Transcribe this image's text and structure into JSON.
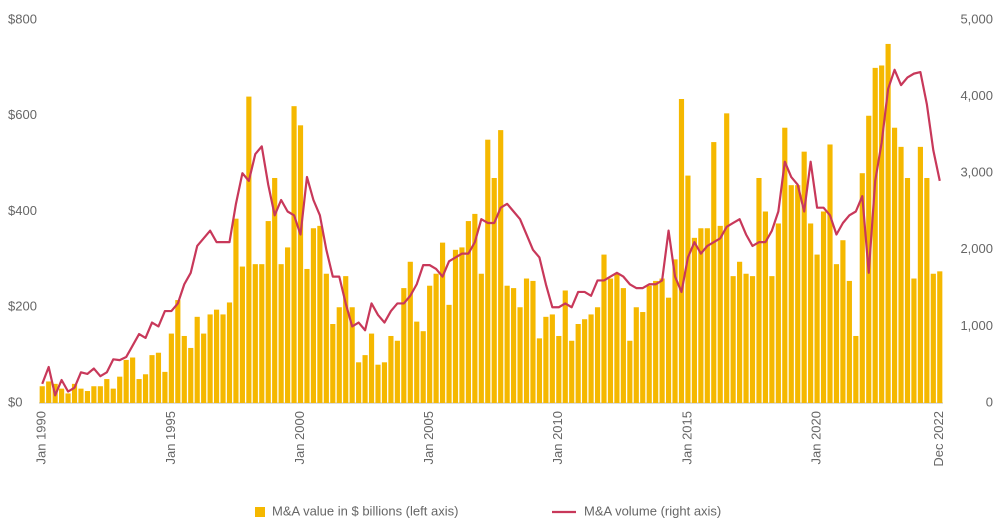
{
  "chart_data": {
    "type": "bar",
    "categories": [
      "Jan 1990",
      null,
      null,
      null,
      null,
      null,
      null,
      null,
      null,
      null,
      null,
      null,
      null,
      null,
      null,
      null,
      null,
      null,
      null,
      null,
      "Jan 1995",
      null,
      null,
      null,
      null,
      null,
      null,
      null,
      null,
      null,
      null,
      null,
      null,
      null,
      null,
      null,
      null,
      null,
      null,
      null,
      "Jan 2000",
      null,
      null,
      null,
      null,
      null,
      null,
      null,
      null,
      null,
      null,
      null,
      null,
      null,
      null,
      null,
      null,
      null,
      null,
      null,
      "Jan 2005",
      null,
      null,
      null,
      null,
      null,
      null,
      null,
      null,
      null,
      null,
      null,
      null,
      null,
      null,
      null,
      null,
      null,
      null,
      null,
      "Jan 2010",
      null,
      null,
      null,
      null,
      null,
      null,
      null,
      null,
      null,
      null,
      null,
      null,
      null,
      null,
      null,
      null,
      null,
      null,
      null,
      "Jan 2015",
      null,
      null,
      null,
      null,
      null,
      null,
      null,
      null,
      null,
      null,
      null,
      null,
      null,
      null,
      null,
      null,
      null,
      null,
      null,
      "Jan 2020",
      null,
      null,
      null,
      null,
      null,
      null,
      null,
      null,
      null,
      null,
      null,
      null,
      null,
      null,
      null,
      null,
      null,
      null,
      "Dec 2022"
    ],
    "series": [
      {
        "name": "M&A value in $ billions (left axis)",
        "type": "bar",
        "color": "#f5b800",
        "axis": "y",
        "values": [
          35,
          45,
          40,
          30,
          20,
          40,
          30,
          25,
          35,
          35,
          50,
          30,
          55,
          90,
          95,
          50,
          60,
          100,
          105,
          65,
          145,
          215,
          140,
          115,
          180,
          145,
          185,
          195,
          185,
          210,
          385,
          285,
          640,
          290,
          290,
          380,
          470,
          290,
          325,
          620,
          580,
          280,
          365,
          370,
          270,
          165,
          200,
          265,
          200,
          85,
          100,
          145,
          80,
          85,
          140,
          130,
          240,
          295,
          170,
          150,
          245,
          270,
          335,
          205,
          320,
          325,
          380,
          395,
          270,
          550,
          470,
          570,
          245,
          240,
          200,
          260,
          255,
          135,
          180,
          185,
          140,
          235,
          130,
          165,
          175,
          185,
          200,
          310,
          260,
          270,
          240,
          130,
          200,
          190,
          245,
          255,
          260,
          220,
          300,
          635,
          475,
          345,
          365,
          365,
          545,
          370,
          605,
          265,
          295,
          270,
          265,
          470,
          400,
          265,
          375,
          575,
          455,
          455,
          525,
          375,
          310,
          400,
          540,
          290,
          340,
          255,
          140,
          480,
          600,
          700,
          705,
          750,
          575,
          535,
          470,
          260,
          535,
          470,
          270,
          275
        ]
      },
      {
        "name": "M&A volume (right axis)",
        "type": "line",
        "color": "#c8385a",
        "axis": "y2",
        "values": [
          250,
          470,
          100,
          300,
          150,
          200,
          400,
          380,
          450,
          350,
          400,
          570,
          560,
          600,
          750,
          900,
          850,
          1050,
          1000,
          1200,
          1200,
          1300,
          1550,
          1700,
          2050,
          2150,
          2250,
          2100,
          2100,
          2100,
          2600,
          3000,
          2900,
          3250,
          3350,
          2850,
          2450,
          2650,
          2500,
          2450,
          2200,
          2950,
          2650,
          2450,
          2000,
          1650,
          1650,
          1300,
          1000,
          1050,
          950,
          1300,
          1150,
          1050,
          1200,
          1300,
          1300,
          1400,
          1550,
          1800,
          1800,
          1750,
          1650,
          1850,
          1900,
          1950,
          1950,
          2100,
          2400,
          2350,
          2350,
          2550,
          2600,
          2500,
          2400,
          2200,
          2000,
          1900,
          1550,
          1250,
          1250,
          1300,
          1250,
          1450,
          1450,
          1400,
          1600,
          1600,
          1650,
          1700,
          1650,
          1550,
          1500,
          1500,
          1550,
          1550,
          1600,
          2250,
          1650,
          1450,
          1900,
          2100,
          1950,
          2050,
          2100,
          2150,
          2300,
          2350,
          2400,
          2200,
          2050,
          2100,
          2100,
          2250,
          2500,
          3150,
          2950,
          2850,
          2500,
          3150,
          2550,
          2550,
          2450,
          2200,
          2350,
          2450,
          2500,
          2700,
          1700,
          2900,
          3400,
          4100,
          4350,
          4150,
          4250,
          4300,
          4320,
          3900,
          3300,
          2900
        ]
      }
    ],
    "ylim": [
      0,
      800
    ],
    "yticks": [
      {
        "value": 0,
        "label": "$0"
      },
      {
        "value": 200,
        "label": "$200"
      },
      {
        "value": 400,
        "label": "$400"
      },
      {
        "value": 600,
        "label": "$600"
      },
      {
        "value": 800,
        "label": "$800"
      }
    ],
    "y2lim": [
      0,
      5000
    ],
    "y2ticks": [
      0,
      {
        "value": 1000,
        "label": "1,000"
      },
      {
        "value": 2000,
        "label": "2,000"
      },
      {
        "value": 3000,
        "label": "3,000"
      },
      {
        "value": 4000,
        "label": "4,000"
      },
      {
        "value": 5000,
        "label": "5,000"
      }
    ],
    "grid": false,
    "legend": "bottom"
  }
}
